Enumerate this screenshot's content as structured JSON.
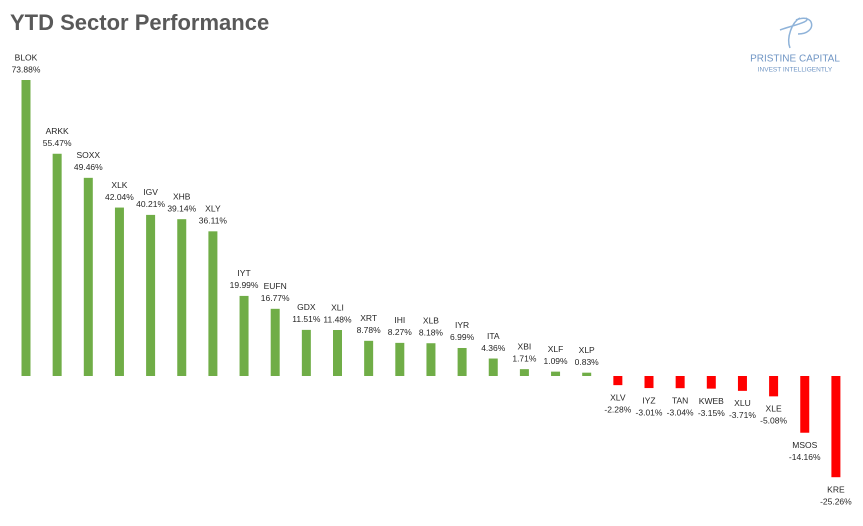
{
  "chart_data": {
    "type": "bar",
    "title": "YTD Sector Performance",
    "categories": [
      "BLOK",
      "ARKK",
      "SOXX",
      "XLK",
      "IGV",
      "XHB",
      "XLY",
      "IYT",
      "EUFN",
      "GDX",
      "XLI",
      "XRT",
      "IHI",
      "XLB",
      "IYR",
      "ITA",
      "XBI",
      "XLF",
      "XLP",
      "XLV",
      "IYZ",
      "TAN",
      "KWEB",
      "XLU",
      "XLE",
      "MSOS",
      "KRE"
    ],
    "values": [
      73.88,
      55.47,
      49.46,
      42.04,
      40.21,
      39.14,
      36.11,
      19.99,
      16.77,
      11.51,
      11.48,
      8.78,
      8.27,
      8.18,
      6.99,
      4.36,
      1.71,
      1.09,
      0.83,
      -2.28,
      -3.01,
      -3.04,
      -3.15,
      -3.71,
      -5.08,
      -14.16,
      -25.26
    ],
    "value_labels": [
      "73.88%",
      "55.47%",
      "49.46%",
      "42.04%",
      "40.21%",
      "39.14%",
      "36.11%",
      "19.99%",
      "16.77%",
      "11.51%",
      "11.48%",
      "8.78%",
      "8.27%",
      "8.18%",
      "6.99%",
      "4.36%",
      "1.71%",
      "1.09%",
      "0.83%",
      "-2.28%",
      "-3.01%",
      "-3.04%",
      "-3.15%",
      "-3.71%",
      "-5.08%",
      "-14.16%",
      "-25.26%"
    ],
    "positive_color": "#70ad47",
    "negative_color": "#ff0000"
  },
  "logo": {
    "name": "PRISTINE CAPITAL",
    "tagline": "INVEST INTELLIGENTLY"
  }
}
